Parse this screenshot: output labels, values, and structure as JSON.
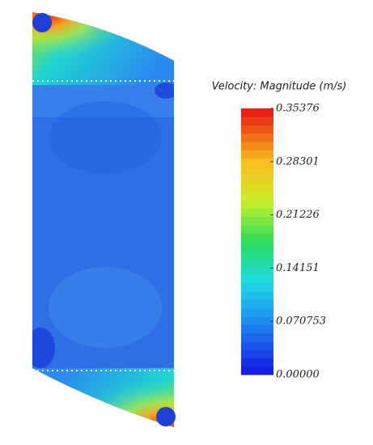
{
  "chart_data": {
    "type": "colorbar",
    "title": "Velocity: Magnitude (m/s)",
    "clim": [
      0,
      0.35376
    ],
    "ticks": [
      {
        "value": 0,
        "label": "0.00000"
      },
      0.070753,
      0.14151,
      0.21226,
      0.28301,
      0.35376
    ]
  }
}
